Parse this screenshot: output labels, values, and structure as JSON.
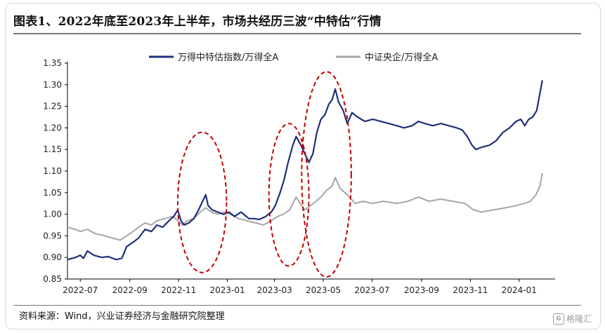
{
  "title": "图表1、2022年底至2023年上半年，市场共经历三波“中特估”行情",
  "source": "资料来源：Wind，兴业证券经济与金融研究院整理",
  "watermark": "格隆汇",
  "chart_data": {
    "type": "line",
    "x_axis_type": "date",
    "xlim": [
      "2022-06-15",
      "2024-02-15"
    ],
    "ylim": [
      0.85,
      1.35
    ],
    "y_ticks": [
      0.85,
      0.9,
      0.95,
      1.0,
      1.05,
      1.1,
      1.15,
      1.2,
      1.25,
      1.3,
      1.35
    ],
    "y_tick_labels": [
      "0.85",
      "0.90",
      "0.95",
      "1.00",
      "1.05",
      "1.10",
      "1.15",
      "1.20",
      "1.25",
      "1.30",
      "1.35"
    ],
    "x_ticks": [
      "2022-07-01",
      "2022-09-01",
      "2022-11-01",
      "2023-01-01",
      "2023-03-01",
      "2023-05-01",
      "2023-07-01",
      "2023-09-01",
      "2023-11-01",
      "2024-01-01"
    ],
    "x_tick_labels": [
      "2022-07",
      "2022-09",
      "2022-11",
      "2023-01",
      "2023-03",
      "2023-05",
      "2023-07",
      "2023-09",
      "2023-11",
      "2024-01"
    ],
    "grid": false,
    "legend_position": "top",
    "series": [
      {
        "name": "万得中特估指数/万得全A",
        "color": "#1f2f7a",
        "points": [
          [
            "2022-06-15",
            0.895
          ],
          [
            "2022-06-25",
            0.9
          ],
          [
            "2022-07-01",
            0.905
          ],
          [
            "2022-07-05",
            0.898
          ],
          [
            "2022-07-10",
            0.915
          ],
          [
            "2022-07-18",
            0.905
          ],
          [
            "2022-07-28",
            0.9
          ],
          [
            "2022-08-05",
            0.902
          ],
          [
            "2022-08-15",
            0.895
          ],
          [
            "2022-08-22",
            0.898
          ],
          [
            "2022-08-28",
            0.925
          ],
          [
            "2022-09-05",
            0.935
          ],
          [
            "2022-09-12",
            0.945
          ],
          [
            "2022-09-20",
            0.965
          ],
          [
            "2022-09-28",
            0.96
          ],
          [
            "2022-10-05",
            0.975
          ],
          [
            "2022-10-12",
            0.97
          ],
          [
            "2022-10-20",
            0.985
          ],
          [
            "2022-10-26",
            0.995
          ],
          [
            "2022-10-31",
            1.01
          ],
          [
            "2022-11-04",
            0.985
          ],
          [
            "2022-11-08",
            0.975
          ],
          [
            "2022-11-14",
            0.98
          ],
          [
            "2022-11-20",
            0.99
          ],
          [
            "2022-11-26",
            1.01
          ],
          [
            "2022-12-01",
            1.03
          ],
          [
            "2022-12-05",
            1.045
          ],
          [
            "2022-12-08",
            1.02
          ],
          [
            "2022-12-13",
            1.01
          ],
          [
            "2022-12-20",
            1.005
          ],
          [
            "2022-12-27",
            1.0
          ],
          [
            "2023-01-03",
            1.005
          ],
          [
            "2023-01-10",
            0.995
          ],
          [
            "2023-01-18",
            1.005
          ],
          [
            "2023-01-28",
            0.99
          ],
          [
            "2023-02-03",
            0.99
          ],
          [
            "2023-02-10",
            0.988
          ],
          [
            "2023-02-18",
            0.995
          ],
          [
            "2023-02-25",
            1.005
          ],
          [
            "2023-03-02",
            1.02
          ],
          [
            "2023-03-08",
            1.05
          ],
          [
            "2023-03-13",
            1.08
          ],
          [
            "2023-03-18",
            1.12
          ],
          [
            "2023-03-24",
            1.16
          ],
          [
            "2023-03-28",
            1.18
          ],
          [
            "2023-04-03",
            1.16
          ],
          [
            "2023-04-08",
            1.14
          ],
          [
            "2023-04-13",
            1.12
          ],
          [
            "2023-04-18",
            1.14
          ],
          [
            "2023-04-23",
            1.19
          ],
          [
            "2023-04-28",
            1.22
          ],
          [
            "2023-05-03",
            1.23
          ],
          [
            "2023-05-08",
            1.255
          ],
          [
            "2023-05-12",
            1.265
          ],
          [
            "2023-05-16",
            1.29
          ],
          [
            "2023-05-20",
            1.26
          ],
          [
            "2023-05-26",
            1.24
          ],
          [
            "2023-05-31",
            1.21
          ],
          [
            "2023-06-06",
            1.235
          ],
          [
            "2023-06-13",
            1.225
          ],
          [
            "2023-06-22",
            1.215
          ],
          [
            "2023-07-02",
            1.22
          ],
          [
            "2023-07-12",
            1.215
          ],
          [
            "2023-07-22",
            1.21
          ],
          [
            "2023-08-01",
            1.205
          ],
          [
            "2023-08-10",
            1.2
          ],
          [
            "2023-08-20",
            1.205
          ],
          [
            "2023-08-28",
            1.215
          ],
          [
            "2023-09-05",
            1.21
          ],
          [
            "2023-09-15",
            1.205
          ],
          [
            "2023-09-25",
            1.21
          ],
          [
            "2023-10-05",
            1.205
          ],
          [
            "2023-10-15",
            1.2
          ],
          [
            "2023-10-22",
            1.195
          ],
          [
            "2023-10-28",
            1.18
          ],
          [
            "2023-11-03",
            1.16
          ],
          [
            "2023-11-08",
            1.15
          ],
          [
            "2023-11-15",
            1.155
          ],
          [
            "2023-11-25",
            1.16
          ],
          [
            "2023-12-03",
            1.17
          ],
          [
            "2023-12-12",
            1.19
          ],
          [
            "2023-12-20",
            1.2
          ],
          [
            "2023-12-28",
            1.215
          ],
          [
            "2024-01-03",
            1.22
          ],
          [
            "2024-01-08",
            1.205
          ],
          [
            "2024-01-13",
            1.22
          ],
          [
            "2024-01-18",
            1.225
          ],
          [
            "2024-01-23",
            1.24
          ],
          [
            "2024-01-26",
            1.27
          ],
          [
            "2024-01-30",
            1.31
          ]
        ]
      },
      {
        "name": "中证央企/万得全A",
        "color": "#a6a6a6",
        "points": [
          [
            "2022-06-15",
            0.97
          ],
          [
            "2022-06-25",
            0.965
          ],
          [
            "2022-07-01",
            0.96
          ],
          [
            "2022-07-10",
            0.965
          ],
          [
            "2022-07-20",
            0.955
          ],
          [
            "2022-08-01",
            0.95
          ],
          [
            "2022-08-10",
            0.945
          ],
          [
            "2022-08-20",
            0.94
          ],
          [
            "2022-08-28",
            0.95
          ],
          [
            "2022-09-05",
            0.96
          ],
          [
            "2022-09-12",
            0.97
          ],
          [
            "2022-09-20",
            0.98
          ],
          [
            "2022-09-28",
            0.975
          ],
          [
            "2022-10-05",
            0.985
          ],
          [
            "2022-10-15",
            0.99
          ],
          [
            "2022-10-25",
            0.995
          ],
          [
            "2022-10-31",
            0.985
          ],
          [
            "2022-11-06",
            0.975
          ],
          [
            "2022-11-12",
            0.985
          ],
          [
            "2022-11-20",
            0.99
          ],
          [
            "2022-11-28",
            1.005
          ],
          [
            "2022-12-05",
            1.015
          ],
          [
            "2022-12-12",
            1.005
          ],
          [
            "2022-12-20",
            1.0
          ],
          [
            "2022-12-28",
            1.005
          ],
          [
            "2023-01-05",
            1.0
          ],
          [
            "2023-01-15",
            0.99
          ],
          [
            "2023-01-25",
            0.985
          ],
          [
            "2023-02-05",
            0.98
          ],
          [
            "2023-02-15",
            0.975
          ],
          [
            "2023-02-25",
            0.985
          ],
          [
            "2023-03-05",
            0.995
          ],
          [
            "2023-03-12",
            1.0
          ],
          [
            "2023-03-20",
            1.01
          ],
          [
            "2023-03-28",
            1.04
          ],
          [
            "2023-04-02",
            1.025
          ],
          [
            "2023-04-08",
            1.01
          ],
          [
            "2023-04-15",
            1.02
          ],
          [
            "2023-04-22",
            1.03
          ],
          [
            "2023-04-28",
            1.04
          ],
          [
            "2023-05-05",
            1.055
          ],
          [
            "2023-05-12",
            1.065
          ],
          [
            "2023-05-16",
            1.085
          ],
          [
            "2023-05-22",
            1.06
          ],
          [
            "2023-05-31",
            1.045
          ],
          [
            "2023-06-10",
            1.025
          ],
          [
            "2023-06-20",
            1.03
          ],
          [
            "2023-07-01",
            1.025
          ],
          [
            "2023-07-15",
            1.03
          ],
          [
            "2023-08-01",
            1.025
          ],
          [
            "2023-08-15",
            1.03
          ],
          [
            "2023-08-28",
            1.04
          ],
          [
            "2023-09-10",
            1.03
          ],
          [
            "2023-09-25",
            1.035
          ],
          [
            "2023-10-10",
            1.03
          ],
          [
            "2023-10-25",
            1.025
          ],
          [
            "2023-11-05",
            1.01
          ],
          [
            "2023-11-15",
            1.005
          ],
          [
            "2023-11-30",
            1.01
          ],
          [
            "2023-12-15",
            1.015
          ],
          [
            "2023-12-28",
            1.02
          ],
          [
            "2024-01-08",
            1.025
          ],
          [
            "2024-01-15",
            1.03
          ],
          [
            "2024-01-22",
            1.045
          ],
          [
            "2024-01-27",
            1.065
          ],
          [
            "2024-01-30",
            1.095
          ]
        ]
      }
    ],
    "annotations": [
      {
        "type": "dashed-ellipse",
        "color": "#c00000",
        "x_range": [
          "2022-10-31",
          "2022-12-31"
        ],
        "y_range": [
          0.865,
          1.19
        ]
      },
      {
        "type": "dashed-ellipse",
        "color": "#c00000",
        "x_range": [
          "2023-02-22",
          "2023-04-13"
        ],
        "y_range": [
          0.88,
          1.21
        ]
      },
      {
        "type": "dashed-ellipse",
        "color": "#c00000",
        "x_range": [
          "2023-04-04",
          "2023-06-05"
        ],
        "y_range": [
          0.855,
          1.33
        ]
      }
    ]
  }
}
